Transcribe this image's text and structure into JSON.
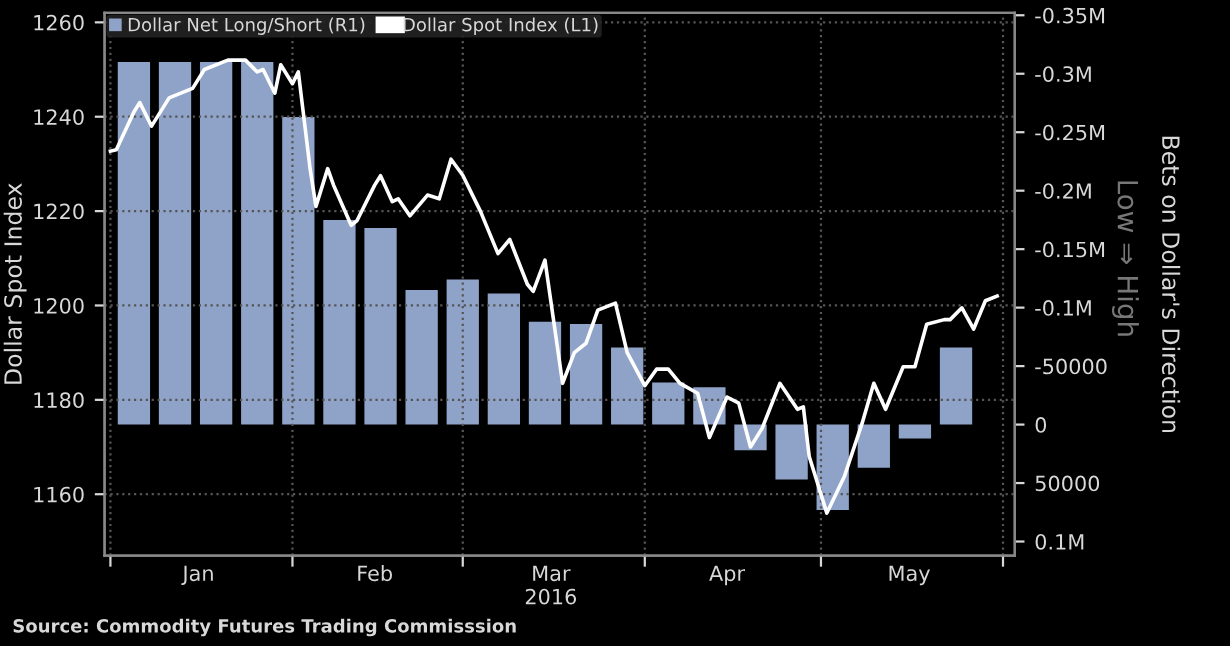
{
  "chart_data": {
    "type": "line",
    "ylabel": "Dollar Spot Index",
    "y2label": "Bets on Dollar's Direction",
    "xlim": [
      "2015-12-31",
      "2016-06-03"
    ],
    "xticks": [
      {
        "value": "2016-01-01",
        "label": null
      },
      {
        "value": "2016-01-16",
        "label": "Jan"
      },
      {
        "value": "2016-02-01",
        "label": null
      },
      {
        "value": "2016-02-15",
        "label": "Feb"
      },
      {
        "value": "2016-03-01",
        "label": null
      },
      {
        "value": "2016-03-16",
        "label": "Mar\n2016"
      },
      {
        "value": "2016-04-01",
        "label": null
      },
      {
        "value": "2016-04-15",
        "label": "Apr"
      },
      {
        "value": "2016-05-01",
        "label": null
      },
      {
        "value": "2016-05-16",
        "label": "May"
      },
      {
        "value": "2016-06-01",
        "label": null
      }
    ],
    "ylim": [
      1147,
      1262
    ],
    "yticks": [
      1160,
      1180,
      1200,
      1220,
      1240,
      1260
    ],
    "y2lim": [
      112000,
      -352000
    ],
    "y2ticks": [
      {
        "value": -350000,
        "label": "-0.35M"
      },
      {
        "value": -300000,
        "label": "-0.3M"
      },
      {
        "value": -250000,
        "label": "-0.25M"
      },
      {
        "value": -200000,
        "label": "-0.2M"
      },
      {
        "value": -150000,
        "label": "-0.15M"
      },
      {
        "value": -100000,
        "label": "-0.1M"
      },
      {
        "value": -50000,
        "label": "-50000"
      },
      0,
      {
        "value": 50000,
        "label": "50000"
      },
      {
        "value": 100000,
        "label": "0.1M"
      }
    ],
    "grid": true,
    "legend": "top left",
    "series": [
      {
        "name": "Dollar Net Long/Short (R1)",
        "type": "bar",
        "axis": "y2",
        "color": "#8fa3c8",
        "x": [
          "2016-01-05",
          "2016-01-12",
          "2016-01-19",
          "2016-01-26",
          "2016-02-02",
          "2016-02-09",
          "2016-02-16",
          "2016-02-23",
          "2016-03-01",
          "2016-03-08",
          "2016-03-15",
          "2016-03-22",
          "2016-03-29",
          "2016-04-05",
          "2016-04-12",
          "2016-04-19",
          "2016-04-26",
          "2016-05-03",
          "2016-05-10",
          "2016-05-17",
          "2016-05-24"
        ],
        "values": [
          -310000,
          -310000,
          -310000,
          -310000,
          -263000,
          -175000,
          -168000,
          -115000,
          -124000,
          -112000,
          -88000,
          -86000,
          -66000,
          -36000,
          -32000,
          22000,
          47000,
          73000,
          37000,
          12000,
          -66000
        ]
      },
      {
        "name": "Dollar Spot Index (L1)",
        "color": "#ffffff",
        "x": [
          "2016-01-01",
          "2016-01-02",
          "2016-01-05",
          "2016-01-06",
          "2016-01-08",
          "2016-01-11",
          "2016-01-15",
          "2016-01-17",
          "2016-01-21",
          "2016-01-24",
          "2016-01-26",
          "2016-01-27",
          "2016-01-29",
          "2016-01-30",
          "2016-02-01",
          "2016-02-02",
          "2016-02-04",
          "2016-02-05",
          "2016-02-07",
          "2016-02-08",
          "2016-02-11",
          "2016-02-12",
          "2016-02-15",
          "2016-02-16",
          "2016-02-18",
          "2016-02-19",
          "2016-02-21",
          "2016-02-24",
          "2016-02-26",
          "2016-02-28",
          "2016-03-01",
          "2016-03-04",
          "2016-03-07",
          "2016-03-09",
          "2016-03-12",
          "2016-03-13",
          "2016-03-15",
          "2016-03-18",
          "2016-03-20",
          "2016-03-22",
          "2016-03-24",
          "2016-03-27",
          "2016-03-29",
          "2016-04-01",
          "2016-04-03",
          "2016-04-05",
          "2016-04-07",
          "2016-04-10",
          "2016-04-12",
          "2016-04-15",
          "2016-04-17",
          "2016-04-19",
          "2016-04-21",
          "2016-04-24",
          "2016-04-27",
          "2016-04-28",
          "2016-04-29",
          "2016-05-02",
          "2016-05-05",
          "2016-05-08",
          "2016-05-10",
          "2016-05-12",
          "2016-05-15",
          "2016-05-17",
          "2016-05-19",
          "2016-05-22",
          "2016-05-23",
          "2016-05-25",
          "2016-05-27",
          "2016-05-29",
          "2016-05-31"
        ],
        "values": [
          1232.7,
          1233,
          1241,
          1243,
          1238,
          1244,
          1246,
          1250,
          1252,
          1252,
          1249.5,
          1250,
          1245,
          1251,
          1247,
          1249.5,
          1229,
          1221,
          1229,
          1225.5,
          1217,
          1218,
          1225.5,
          1227.5,
          1222,
          1222.6,
          1219,
          1223.4,
          1222.6,
          1231,
          1227.6,
          1220,
          1211,
          1214,
          1204.5,
          1203,
          1209.6,
          1183.5,
          1190,
          1192,
          1199,
          1200.5,
          1190,
          1183,
          1186.5,
          1186.5,
          1183.5,
          1181.4,
          1172,
          1180.6,
          1179.3,
          1170,
          1174,
          1183.5,
          1178,
          1178.5,
          1168,
          1156,
          1163.8,
          1175,
          1183.5,
          1178,
          1187,
          1187,
          1196,
          1197,
          1197,
          1199.5,
          1195,
          1201,
          1202
        ]
      }
    ],
    "annotations": [
      "Low ⇒ High",
      "Source: Commodity Futures Trading Commisssion"
    ]
  }
}
